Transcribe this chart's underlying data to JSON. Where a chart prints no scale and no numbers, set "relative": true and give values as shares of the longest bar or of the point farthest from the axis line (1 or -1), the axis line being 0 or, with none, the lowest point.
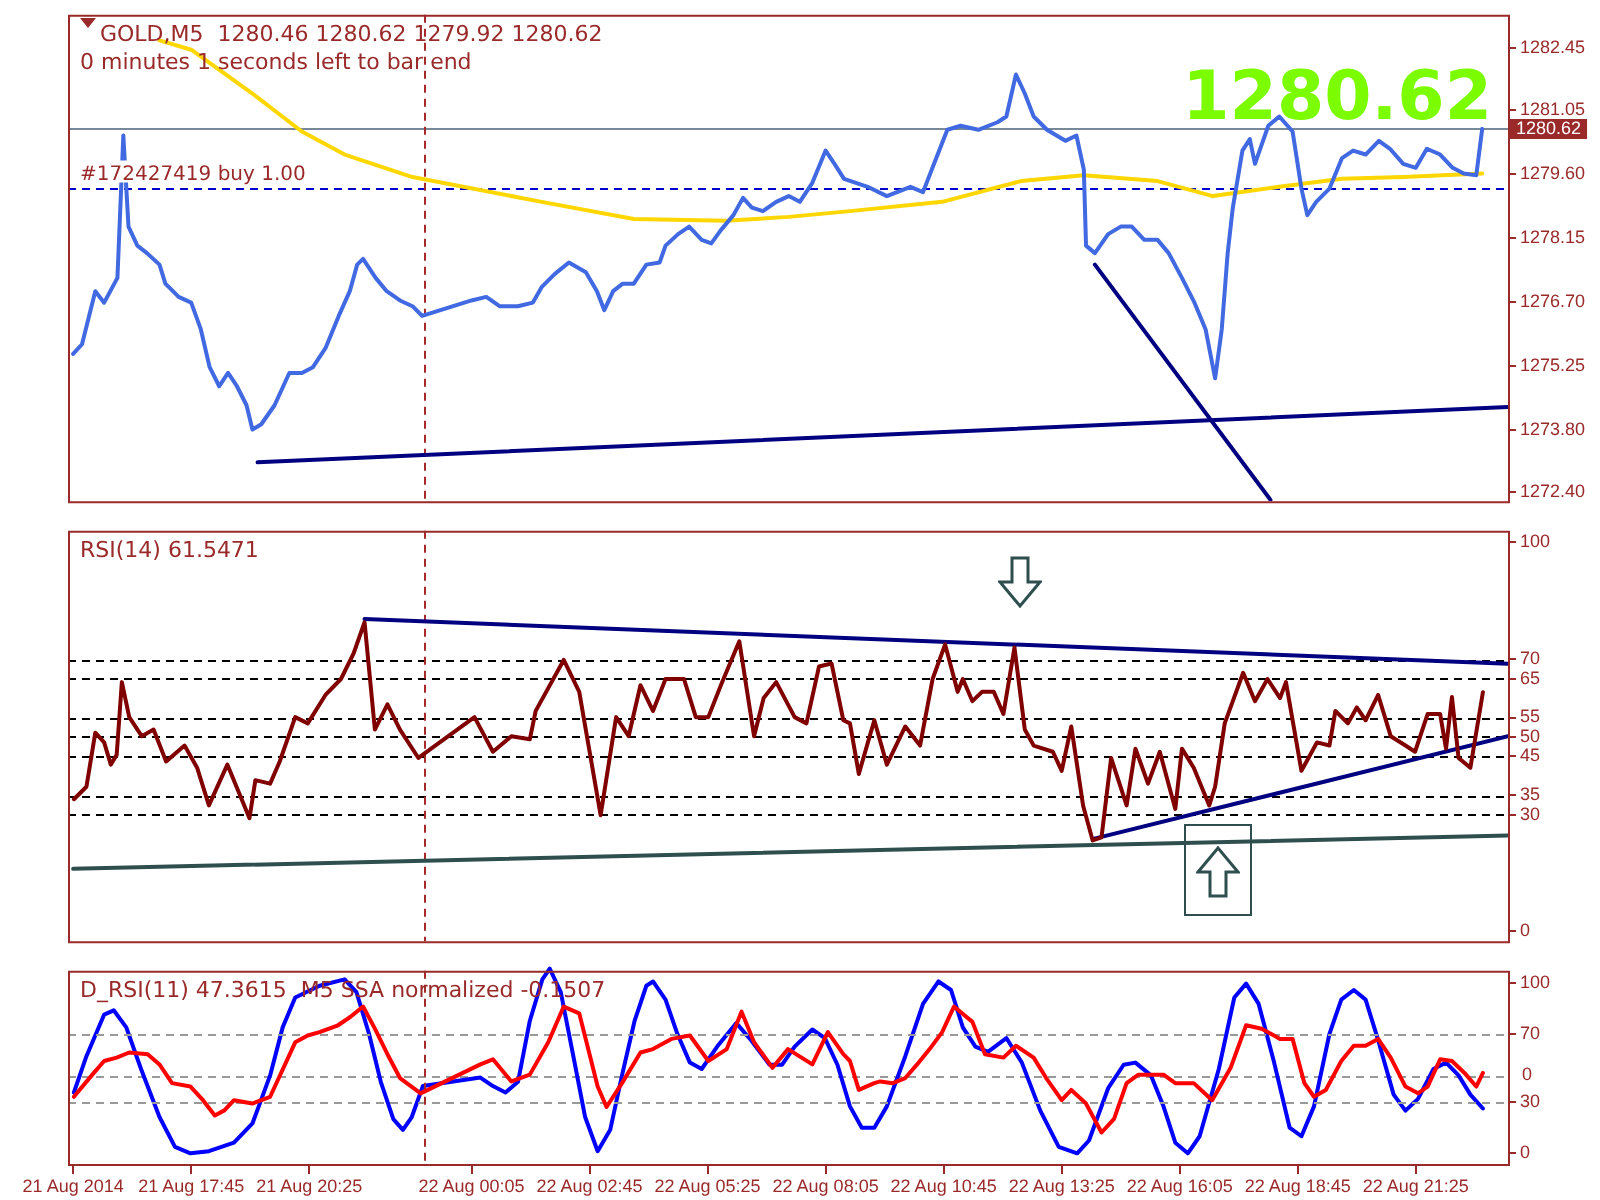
{
  "chart_data": [
    {
      "type": "line",
      "title": "GOLD,M5  1280.46 1280.62 1279.92 1280.62",
      "subtitle": "0 minutes 1 seconds left to bar end",
      "annotations": [
        "1280.62"
      ],
      "xlim": [
        "2014-08-21T14:58",
        "2014-08-22T23:30"
      ],
      "ylim": [
        1272.2,
        1283.2
      ],
      "tick_labels": "y",
      "yticks": [
        1282.45,
        1281.05,
        {
          "value": 1279.6,
          "label": "1279.60"
        },
        1278.15,
        {
          "value": 1276.7,
          "label": "1276.70"
        },
        1275.25,
        {
          "value": 1273.8,
          "label": "1273.80"
        },
        {
          "value": 1272.4,
          "label": "1272.40"
        }
      ],
      "ref_lines": [
        {
          "axis": "y",
          "value": 1280.62,
          "label": "1280.62",
          "color": "#778899",
          "line_style": "solid"
        },
        {
          "axis": "y",
          "value": 1279.27,
          "label": "#172427419 buy 1.00",
          "color": "#0000cd",
          "line_style": "dashed"
        },
        {
          "axis": "x",
          "value": "2014-08-21T23:00",
          "color": "#a52a2a",
          "line_style": "dashed"
        }
      ],
      "series": [
        {
          "color": "#4169e1",
          "x": [
            "2014-08-21T15:05",
            "2014-08-21T15:17",
            "2014-08-21T15:35",
            "2014-08-21T15:47",
            "2014-08-21T16:05",
            "2014-08-21T16:13",
            "2014-08-21T16:20",
            "2014-08-21T16:32",
            "2014-08-21T16:45",
            "2014-08-21T17:02",
            "2014-08-21T17:10",
            "2014-08-21T17:28",
            "2014-08-21T17:45",
            "2014-08-21T17:58",
            "2014-08-21T18:10",
            "2014-08-21T18:23",
            "2014-08-21T18:35",
            "2014-08-21T18:47",
            "2014-08-21T19:00",
            "2014-08-21T19:08",
            "2014-08-21T19:20",
            "2014-08-21T19:38",
            "2014-08-21T19:58",
            "2014-08-21T20:15",
            "2014-08-21T20:30",
            "2014-08-21T20:47",
            "2014-08-21T21:05",
            "2014-08-21T21:20",
            "2014-08-21T21:30",
            "2014-08-21T21:38",
            "2014-08-21T21:55",
            "2014-08-21T22:10",
            "2014-08-21T22:28",
            "2014-08-21T22:45",
            "2014-08-21T22:58",
            "2014-08-22T00:05",
            "2014-08-22T00:25",
            "2014-08-22T00:43",
            "2014-08-22T01:08",
            "2014-08-22T01:28",
            "2014-08-22T01:40",
            "2014-08-22T01:58",
            "2014-08-22T02:17",
            "2014-08-22T02:40",
            "2014-08-22T02:55",
            "2014-08-22T03:05",
            "2014-08-22T03:17",
            "2014-08-22T03:30",
            "2014-08-22T03:45",
            "2014-08-22T04:02",
            "2014-08-22T04:20",
            "2014-08-22T04:28",
            "2014-08-22T04:45",
            "2014-08-22T05:00",
            "2014-08-22T05:17",
            "2014-08-22T05:30",
            "2014-08-22T05:43",
            "2014-08-22T06:00",
            "2014-08-22T06:13",
            "2014-08-22T06:25",
            "2014-08-22T06:40",
            "2014-08-22T06:58",
            "2014-08-22T07:15",
            "2014-08-22T07:30",
            "2014-08-22T07:47",
            "2014-08-22T08:05",
            "2014-08-22T08:17",
            "2014-08-22T08:30",
            "2014-08-22T09:02",
            "2014-08-22T09:28",
            "2014-08-22T10:00",
            "2014-08-22T10:17",
            "2014-08-22T10:35",
            "2014-08-22T10:50",
            "2014-08-22T11:08",
            "2014-08-22T11:32",
            "2014-08-22T11:58",
            "2014-08-22T12:10",
            "2014-08-22T12:23",
            "2014-08-22T12:35",
            "2014-08-22T12:47",
            "2014-08-22T13:05",
            "2014-08-22T13:30",
            "2014-08-22T13:45",
            "2014-08-22T13:55",
            "2014-08-22T13:58",
            "2014-08-22T14:10",
            "2014-08-22T14:28",
            "2014-08-22T14:45",
            "2014-08-22T15:00",
            "2014-08-22T15:17",
            "2014-08-22T15:35",
            "2014-08-22T15:50",
            "2014-08-22T16:08",
            "2014-08-22T16:25",
            "2014-08-22T16:40",
            "2014-08-22T16:53",
            "2014-08-22T17:02",
            "2014-08-22T17:10",
            "2014-08-22T17:17",
            "2014-08-22T17:30",
            "2014-08-22T17:40",
            "2014-08-22T17:47",
            "2014-08-22T18:05",
            "2014-08-22T18:20",
            "2014-08-22T18:38",
            "2014-08-22T18:50",
            "2014-08-22T18:58",
            "2014-08-22T19:10",
            "2014-08-22T19:28",
            "2014-08-22T19:45",
            "2014-08-22T20:00",
            "2014-08-22T20:17",
            "2014-08-22T20:35",
            "2014-08-22T20:50",
            "2014-08-22T21:08",
            "2014-08-22T21:25",
            "2014-08-22T21:40",
            "2014-08-22T21:58",
            "2014-08-22T22:15",
            "2014-08-22T22:30",
            "2014-08-22T22:47",
            "2014-08-22T22:55"
          ],
          "values": [
            1275.53,
            1275.75,
            1276.95,
            1276.69,
            1277.25,
            1280.47,
            1278.41,
            1277.98,
            1277.81,
            1277.55,
            1277.12,
            1276.82,
            1276.69,
            1276.09,
            1275.23,
            1274.8,
            1275.1,
            1274.8,
            1274.37,
            1273.82,
            1273.94,
            1274.37,
            1275.1,
            1275.1,
            1275.23,
            1275.66,
            1276.39,
            1276.95,
            1277.55,
            1277.68,
            1277.25,
            1276.95,
            1276.74,
            1276.61,
            1276.39,
            1276.74,
            1276.82,
            1276.61,
            1276.61,
            1276.69,
            1277.04,
            1277.34,
            1277.6,
            1277.38,
            1276.95,
            1276.52,
            1276.95,
            1277.12,
            1277.12,
            1277.55,
            1277.6,
            1277.98,
            1278.24,
            1278.41,
            1278.11,
            1278.03,
            1278.33,
            1278.67,
            1279.06,
            1278.84,
            1278.76,
            1278.97,
            1279.1,
            1278.97,
            1279.4,
            1280.13,
            1279.83,
            1279.49,
            1279.31,
            1279.1,
            1279.31,
            1279.19,
            1279.96,
            1280.6,
            1280.69,
            1280.6,
            1280.77,
            1280.9,
            1281.85,
            1281.42,
            1280.9,
            1280.6,
            1280.35,
            1280.47,
            1279.7,
            1277.98,
            1277.81,
            1278.24,
            1278.41,
            1278.41,
            1278.11,
            1278.11,
            1277.81,
            1277.25,
            1276.69,
            1276.09,
            1274.98,
            1276.09,
            1277.81,
            1278.84,
            1280.13,
            1280.39,
            1279.83,
            1280.69,
            1280.9,
            1280.56,
            1279.27,
            1278.67,
            1278.97,
            1279.27,
            1279.96,
            1280.13,
            1280.04,
            1280.35,
            1280.17,
            1279.83,
            1279.74,
            1280.17,
            1280.04,
            1279.74,
            1279.61,
            1279.57,
            1280.62
          ],
          "line_style": "solid"
        },
        {
          "color": "#ffd700",
          "x": [
            "2014-08-21T17:02",
            "2014-08-21T17:45",
            "2014-08-21T19:08",
            "2014-08-21T20:15",
            "2014-08-21T21:13",
            "2014-08-21T22:45",
            "2014-08-22T01:40",
            "2014-08-22T03:45",
            "2014-08-22T05:50",
            "2014-08-22T07:15",
            "2014-08-22T08:38",
            "2014-08-22T10:43",
            "2014-08-22T12:30",
            "2014-08-22T13:55",
            "2014-08-22T15:35",
            "2014-08-22T16:50",
            "2014-08-22T18:20",
            "2014-08-22T19:45",
            "2014-08-22T21:08",
            "2014-08-22T22:55"
          ],
          "values": [
            1282.62,
            1282.41,
            1281.42,
            1280.56,
            1280.04,
            1279.53,
            1278.97,
            1278.58,
            1278.54,
            1278.63,
            1278.76,
            1278.97,
            1279.44,
            1279.57,
            1279.44,
            1279.1,
            1279.31,
            1279.49,
            1279.53,
            1279.61
          ]
        },
        {
          "color": "#000080",
          "x": [
            "2014-08-21T19:15",
            "2014-08-22T23:30"
          ],
          "values": [
            1273.08,
            1274.33
          ]
        },
        {
          "color": "#000080",
          "x": [
            "2014-08-22T14:10",
            "2014-08-22T18:08"
          ],
          "values": [
            1277.55,
            1272.23
          ]
        }
      ]
    },
    {
      "type": "line",
      "title": "RSI(14) 61.5471",
      "xlim": [
        "2014-08-21T14:58",
        "2014-08-22T23:30"
      ],
      "ylim": [
        -2.5,
        103
      ],
      "tick_labels": "y",
      "yticks": [
        100,
        70,
        65,
        55,
        50,
        45,
        35,
        30,
        0
      ],
      "ref_lines": [
        {
          "axis": "y",
          "value": 70,
          "color": "#000000",
          "line_style": "dashed"
        },
        {
          "axis": "y",
          "value": 65,
          "color": "#000000",
          "line_style": "dashed"
        },
        {
          "axis": "y",
          "value": 55,
          "color": "#000000",
          "line_style": "dashed"
        },
        {
          "axis": "y",
          "value": 50,
          "color": "#000000",
          "line_style": "dashed"
        },
        {
          "axis": "y",
          "value": 45,
          "color": "#000000",
          "line_style": "dashed"
        },
        {
          "axis": "y",
          "value": 35,
          "color": "#000000",
          "line_style": "dashed"
        },
        {
          "axis": "y",
          "value": 30,
          "color": "#000000",
          "line_style": "dashed"
        },
        {
          "axis": "x",
          "value": "2014-08-21T23:00",
          "color": "#a52a2a",
          "line_style": "dashed"
        }
      ],
      "series": [
        {
          "color": "#800000",
          "x": [
            "2014-08-21T15:06",
            "2014-08-21T15:23",
            "2014-08-21T15:35",
            "2014-08-21T15:47",
            "2014-08-21T15:56",
            "2014-08-21T16:04",
            "2014-08-21T16:11",
            "2014-08-21T16:21",
            "2014-08-21T16:38",
            "2014-08-21T16:54",
            "2014-08-21T17:11",
            "2014-08-21T17:36",
            "2014-08-21T17:53",
            "2014-08-21T18:09",
            "2014-08-21T18:34",
            "2014-08-21T19:04",
            "2014-08-21T19:12",
            "2014-08-21T19:32",
            "2014-08-21T19:45",
            "2014-08-21T20:06",
            "2014-08-21T20:23",
            "2014-08-21T20:47",
            "2014-08-21T21:08",
            "2014-08-21T21:25",
            "2014-08-21T21:40",
            "2014-08-21T21:54",
            "2014-08-21T22:11",
            "2014-08-21T22:28",
            "2014-08-21T22:53",
            "2014-08-22T00:09",
            "2014-08-22T00:34",
            "2014-08-22T00:59",
            "2014-08-22T01:24",
            "2014-08-22T01:32",
            "2014-08-22T02:10",
            "2014-08-22T02:31",
            "2014-08-22T03:00",
            "2014-08-22T03:21",
            "2014-08-22T03:38",
            "2014-08-22T03:54",
            "2014-08-22T04:11",
            "2014-08-22T04:28",
            "2014-08-22T04:53",
            "2014-08-22T05:09",
            "2014-08-22T05:26",
            "2014-08-22T05:43",
            "2014-08-22T06:08",
            "2014-08-22T06:28",
            "2014-08-22T06:41",
            "2014-08-22T06:58",
            "2014-08-22T07:23",
            "2014-08-22T07:39",
            "2014-08-22T07:56",
            "2014-08-22T08:13",
            "2014-08-22T08:29",
            "2014-08-22T08:38",
            "2014-08-22T08:50",
            "2014-08-22T09:11",
            "2014-08-22T09:28",
            "2014-08-22T09:53",
            "2014-08-22T10:13",
            "2014-08-22T10:30",
            "2014-08-22T10:47",
            "2014-08-22T11:04",
            "2014-08-22T11:11",
            "2014-08-22T11:24",
            "2014-08-22T11:37",
            "2014-08-22T11:53",
            "2014-08-22T12:06",
            "2014-08-22T12:21",
            "2014-08-22T12:35",
            "2014-08-22T12:47",
            "2014-08-22T13:13",
            "2014-08-22T13:25",
            "2014-08-22T13:38",
            "2014-08-22T13:54",
            "2014-08-22T14:07",
            "2014-08-22T14:19",
            "2014-08-22T14:32",
            "2014-08-22T14:53",
            "2014-08-22T15:05",
            "2014-08-22T15:22",
            "2014-08-22T15:38",
            "2014-08-22T15:59",
            "2014-08-22T16:08",
            "2014-08-22T16:24",
            "2014-08-22T16:45",
            "2014-08-22T16:53",
            "2014-08-22T17:06",
            "2014-08-22T17:31",
            "2014-08-22T17:47",
            "2014-08-22T18:04",
            "2014-08-22T18:21",
            "2014-08-22T18:29",
            "2014-08-22T18:50",
            "2014-08-22T19:11",
            "2014-08-22T19:28",
            "2014-08-22T19:36",
            "2014-08-22T19:53",
            "2014-08-22T20:05",
            "2014-08-22T20:17",
            "2014-08-22T20:34",
            "2014-08-22T20:51",
            "2014-08-22T21:11",
            "2014-08-22T21:24",
            "2014-08-22T21:41",
            "2014-08-22T21:58",
            "2014-08-22T22:06",
            "2014-08-22T22:14",
            "2014-08-22T22:23",
            "2014-08-22T22:39",
            "2014-08-22T22:56"
          ],
          "values": [
            34.0,
            37.2,
            51.1,
            48.6,
            42.9,
            45.4,
            64.1,
            55.1,
            50.2,
            51.9,
            43.7,
            47.8,
            42.1,
            32.4,
            42.9,
            29.1,
            38.9,
            38.0,
            43.7,
            55.1,
            53.5,
            60.8,
            64.9,
            71.4,
            79.5,
            51.9,
            58.4,
            51.9,
            44.6,
            55.1,
            46.2,
            50.2,
            49.4,
            56.7,
            69.8,
            61.6,
            29.9,
            55.1,
            50.2,
            63.3,
            56.7,
            64.9,
            64.9,
            55.1,
            55.1,
            63.3,
            74.6,
            50.2,
            60.0,
            64.1,
            55.1,
            53.5,
            68.1,
            68.9,
            54.3,
            53.5,
            40.5,
            54.3,
            42.9,
            52.7,
            47.8,
            64.9,
            73.8,
            61.6,
            64.9,
            59.2,
            61.6,
            61.6,
            55.9,
            73.0,
            51.9,
            47.8,
            46.2,
            41.3,
            52.7,
            32.4,
            23.4,
            24.2,
            44.6,
            32.4,
            47.0,
            38.0,
            46.2,
            31.5,
            47.0,
            42.1,
            32.4,
            37.2,
            53.5,
            66.5,
            59.2,
            64.9,
            60.0,
            64.1,
            41.3,
            48.6,
            47.8,
            56.7,
            53.5,
            57.6,
            54.3,
            60.8,
            50.2,
            47.8,
            46.2,
            55.9,
            55.9,
            47.0,
            60.3,
            44.6,
            42.1,
            61.5
          ]
        },
        {
          "color": "#000080",
          "x": [
            "2014-08-21T21:40",
            "2014-08-22T23:30"
          ],
          "values": [
            80.3,
            68.8
          ]
        },
        {
          "color": "#000080",
          "x": [
            "2014-08-22T14:08",
            "2014-08-22T23:30"
          ],
          "values": [
            23.8,
            50.2
          ]
        },
        {
          "color": "#2f4f4f",
          "x": [
            "2014-08-21T15:05",
            "2014-08-22T23:30"
          ],
          "values": [
            16.1,
            24.7
          ]
        }
      ]
    },
    {
      "type": "line",
      "title": "D_RSI(11) 47.3615  M5 SSA normalized -0.1507",
      "xlim": [
        "2014-08-21T14:58",
        "2014-08-22T23:30"
      ],
      "ylim": [
        -6.5,
        107
      ],
      "yticks": [
        100,
        70,
        30,
        0
      ],
      "xticks": [
        {
          "value": "2014-08-21T15:05",
          "label": "21 Aug 2014"
        },
        {
          "value": "2014-08-21T17:45",
          "label": "21 Aug 17:45"
        },
        {
          "value": "2014-08-21T20:25",
          "label": "21 Aug 20:25"
        },
        {
          "value": "2014-08-22T00:05",
          "label": "22 Aug 00:05"
        },
        {
          "value": "2014-08-22T02:45",
          "label": "22 Aug 02:45"
        },
        {
          "value": "2014-08-22T05:25",
          "label": "22 Aug 05:25"
        },
        {
          "value": "2014-08-22T08:05",
          "label": "22 Aug 08:05"
        },
        {
          "value": "2014-08-22T10:45",
          "label": "22 Aug 10:45"
        },
        {
          "value": "2014-08-22T13:25",
          "label": "22 Aug 13:25"
        },
        {
          "value": "2014-08-22T16:05",
          "label": "22 Aug 16:05"
        },
        {
          "value": "2014-08-22T18:45",
          "label": "22 Aug 18:45"
        },
        {
          "value": "2014-08-22T21:25",
          "label": "22 Aug 21:25"
        }
      ],
      "ref_lines": [
        {
          "axis": "y",
          "value": 70,
          "color": "#999999",
          "line_style": "dashed"
        },
        {
          "axis": "y",
          "value": 30,
          "color": "#999999",
          "line_style": "dashed"
        },
        {
          "axis": "x",
          "value": "2014-08-21T23:00",
          "color": "#a52a2a",
          "line_style": "dashed"
        }
      ],
      "series": [
        {
          "color": "#ff0000",
          "x": [
            "2014-08-21T15:06",
            "2014-08-21T15:31",
            "2014-08-21T15:47",
            "2014-08-21T16:04",
            "2014-08-21T16:21",
            "2014-08-21T16:46",
            "2014-08-21T17:02",
            "2014-08-21T17:19",
            "2014-08-21T17:44",
            "2014-08-21T18:01",
            "2014-08-21T18:17",
            "2014-08-21T18:30",
            "2014-08-21T18:43",
            "2014-08-21T19:08",
            "2014-08-21T19:32",
            "2014-08-21T20:06",
            "2014-08-21T20:23",
            "2014-08-21T20:39",
            "2014-08-21T21:04",
            "2014-08-21T21:21",
            "2014-08-21T21:38",
            "2014-08-21T21:54",
            "2014-08-21T22:11",
            "2014-08-21T22:28",
            "2014-08-21T22:56",
            "2014-08-22T00:17",
            "2014-08-22T00:34",
            "2014-08-22T00:59",
            "2014-08-22T01:24",
            "2014-08-22T01:49",
            "2014-08-22T02:10",
            "2014-08-22T02:31",
            "2014-08-22T02:56",
            "2014-08-22T03:08",
            "2014-08-22T03:29",
            "2014-08-22T03:54",
            "2014-08-22T04:11",
            "2014-08-22T04:36",
            "2014-08-22T05:01",
            "2014-08-22T05:26",
            "2014-08-22T05:51",
            "2014-08-22T06:11",
            "2014-08-22T06:28",
            "2014-08-22T06:53",
            "2014-08-22T07:14",
            "2014-08-22T07:47",
            "2014-08-22T08:08",
            "2014-08-22T08:29",
            "2014-08-22T08:38",
            "2014-08-22T08:50",
            "2014-08-22T09:11",
            "2014-08-22T09:19",
            "2014-08-22T09:36",
            "2014-08-22T09:53",
            "2014-08-22T10:09",
            "2014-08-22T10:26",
            "2014-08-22T10:43",
            "2014-08-22T10:59",
            "2014-08-22T11:24",
            "2014-08-22T11:41",
            "2014-08-22T12:06",
            "2014-08-22T12:23",
            "2014-08-22T12:47",
            "2014-08-22T13:04",
            "2014-08-22T13:25",
            "2014-08-22T13:38",
            "2014-08-22T13:58",
            "2014-08-22T14:19",
            "2014-08-22T14:36",
            "2014-08-22T14:53",
            "2014-08-22T15:09",
            "2014-08-22T15:26",
            "2014-08-22T15:43",
            "2014-08-22T15:59",
            "2014-08-22T16:24",
            "2014-08-22T16:49",
            "2014-08-22T17:14",
            "2014-08-22T17:35",
            "2014-08-22T17:56",
            "2014-08-22T18:21",
            "2014-08-22T18:38",
            "2014-08-22T18:54",
            "2014-08-22T19:07",
            "2014-08-22T19:23",
            "2014-08-22T19:44",
            "2014-08-22T20:01",
            "2014-08-22T20:17",
            "2014-08-22T20:34",
            "2014-08-22T20:51",
            "2014-08-22T21:11",
            "2014-08-22T21:28",
            "2014-08-22T21:41",
            "2014-08-22T21:58",
            "2014-08-22T22:14",
            "2014-08-22T22:31",
            "2014-08-22T22:47",
            "2014-08-22T22:56"
          ],
          "values": [
            33,
            46,
            54,
            56,
            59,
            58,
            52,
            41,
            39,
            31,
            22,
            25,
            31,
            29,
            33,
            65,
            69,
            71,
            75,
            80,
            86,
            73,
            58,
            44,
            35,
            52,
            55,
            42,
            46,
            65,
            86,
            82,
            39,
            27,
            41,
            59,
            61,
            67,
            69,
            54,
            61,
            83,
            65,
            50,
            61,
            52,
            71,
            58,
            54,
            37,
            41,
            42,
            41,
            44,
            52,
            61,
            71,
            86,
            77,
            58,
            56,
            63,
            56,
            44,
            31,
            37,
            29,
            12,
            20,
            41,
            46,
            46,
            46,
            41,
            41,
            31,
            50,
            75,
            73,
            67,
            67,
            41,
            33,
            37,
            54,
            63,
            63,
            67,
            56,
            39,
            35,
            39,
            55,
            54,
            47,
            39,
            47
          ]
        }
      ]
    },
    {
      "type": "line",
      "relative": true,
      "tick_labels": false,
      "annotations": [
        "0"
      ],
      "xlim": [
        "2014-08-21T14:58",
        "2014-08-22T23:30"
      ],
      "ref_lines": [
        {
          "axis": "y",
          "value": 0,
          "color": "#999999",
          "line_style": "dashed"
        }
      ],
      "series": [
        {
          "color": "#0000ff",
          "x": [
            "2014-08-21T15:06",
            "2014-08-21T15:23",
            "2014-08-21T15:47",
            "2014-08-21T16:00",
            "2014-08-21T16:17",
            "2014-08-21T16:37",
            "2014-08-21T17:02",
            "2014-08-21T17:23",
            "2014-08-21T17:44",
            "2014-08-21T18:09",
            "2014-08-21T18:43",
            "2014-08-21T19:08",
            "2014-08-21T19:32",
            "2014-08-21T19:49",
            "2014-08-21T20:06",
            "2014-08-21T20:39",
            "2014-08-21T21:13",
            "2014-08-21T21:29",
            "2014-08-21T21:46",
            "2014-08-21T22:02",
            "2014-08-21T22:19",
            "2014-08-21T22:32",
            "2014-08-21T22:44",
            "2014-08-21T22:59",
            "2014-08-22T00:17",
            "2014-08-22T00:34",
            "2014-08-22T00:51",
            "2014-08-22T01:08",
            "2014-08-22T01:24",
            "2014-08-22T01:41",
            "2014-08-22T01:51",
            "2014-08-22T02:06",
            "2014-08-22T02:23",
            "2014-08-22T02:39",
            "2014-08-22T02:56",
            "2014-08-22T03:13",
            "2014-08-22T03:29",
            "2014-08-22T03:46",
            "2014-08-22T04:02",
            "2014-08-22T04:11",
            "2014-08-22T04:28",
            "2014-08-22T04:44",
            "2014-08-22T05:01",
            "2014-08-22T05:17",
            "2014-08-22T05:38",
            "2014-08-22T06:04",
            "2014-08-22T06:24",
            "2014-08-22T06:49",
            "2014-08-22T07:06",
            "2014-08-22T07:23",
            "2014-08-22T07:47",
            "2014-08-22T08:04",
            "2014-08-22T08:21",
            "2014-08-22T08:38",
            "2014-08-22T08:54",
            "2014-08-22T09:11",
            "2014-08-22T09:28",
            "2014-08-22T09:53",
            "2014-08-22T10:17",
            "2014-08-22T10:38",
            "2014-08-22T10:55",
            "2014-08-22T11:11",
            "2014-08-22T11:28",
            "2014-08-22T11:45",
            "2014-08-22T12:10",
            "2014-08-22T12:31",
            "2014-08-22T12:56",
            "2014-08-22T13:21",
            "2014-08-22T13:46",
            "2014-08-22T14:02",
            "2014-08-22T14:28",
            "2014-08-22T14:49",
            "2014-08-22T15:05",
            "2014-08-22T15:26",
            "2014-08-22T15:43",
            "2014-08-22T15:59",
            "2014-08-22T16:16",
            "2014-08-22T16:32",
            "2014-08-22T16:58",
            "2014-08-22T17:19",
            "2014-08-22T17:35",
            "2014-08-22T17:52",
            "2014-08-22T18:13",
            "2014-08-22T18:34",
            "2014-08-22T18:50",
            "2014-08-22T19:07",
            "2014-08-22T19:28",
            "2014-08-22T19:44",
            "2014-08-22T20:01",
            "2014-08-22T20:17",
            "2014-08-22T20:34",
            "2014-08-22T20:55",
            "2014-08-22T21:11",
            "2014-08-22T21:28",
            "2014-08-22T21:49",
            "2014-08-22T22:06",
            "2014-08-22T22:23",
            "2014-08-22T22:39",
            "2014-08-22T22:56"
          ],
          "values": [
            -0.16,
            0.18,
            0.57,
            0.61,
            0.45,
            0.06,
            -0.39,
            -0.67,
            -0.73,
            -0.71,
            -0.63,
            -0.45,
            0,
            0.45,
            0.73,
            0.84,
            0.9,
            0.78,
            0.39,
            -0.06,
            -0.41,
            -0.51,
            -0.39,
            -0.1,
            -0.02,
            -0.1,
            -0.16,
            -0.06,
            0.51,
            0.9,
            1,
            0.78,
            0.18,
            -0.39,
            -0.71,
            -0.51,
            0,
            0.51,
            0.84,
            0.88,
            0.71,
            0.39,
            0.12,
            0.06,
            0.27,
            0.49,
            0.33,
            0.1,
            0.1,
            0.27,
            0.43,
            0.35,
            0.1,
            -0.29,
            -0.49,
            -0.49,
            -0.29,
            0.18,
            0.67,
            0.88,
            0.8,
            0.45,
            0.27,
            0.22,
            0.35,
            0.12,
            -0.33,
            -0.67,
            -0.73,
            -0.61,
            -0.12,
            0.1,
            0.12,
            0,
            -0.29,
            -0.63,
            -0.73,
            -0.57,
            0.06,
            0.73,
            0.86,
            0.67,
            0.12,
            -0.49,
            -0.57,
            -0.29,
            0.39,
            0.71,
            0.8,
            0.71,
            0.33,
            -0.18,
            -0.33,
            -0.22,
            0.06,
            0.12,
            0,
            -0.18,
            -0.31
          ]
        }
      ]
    }
  ]
}
